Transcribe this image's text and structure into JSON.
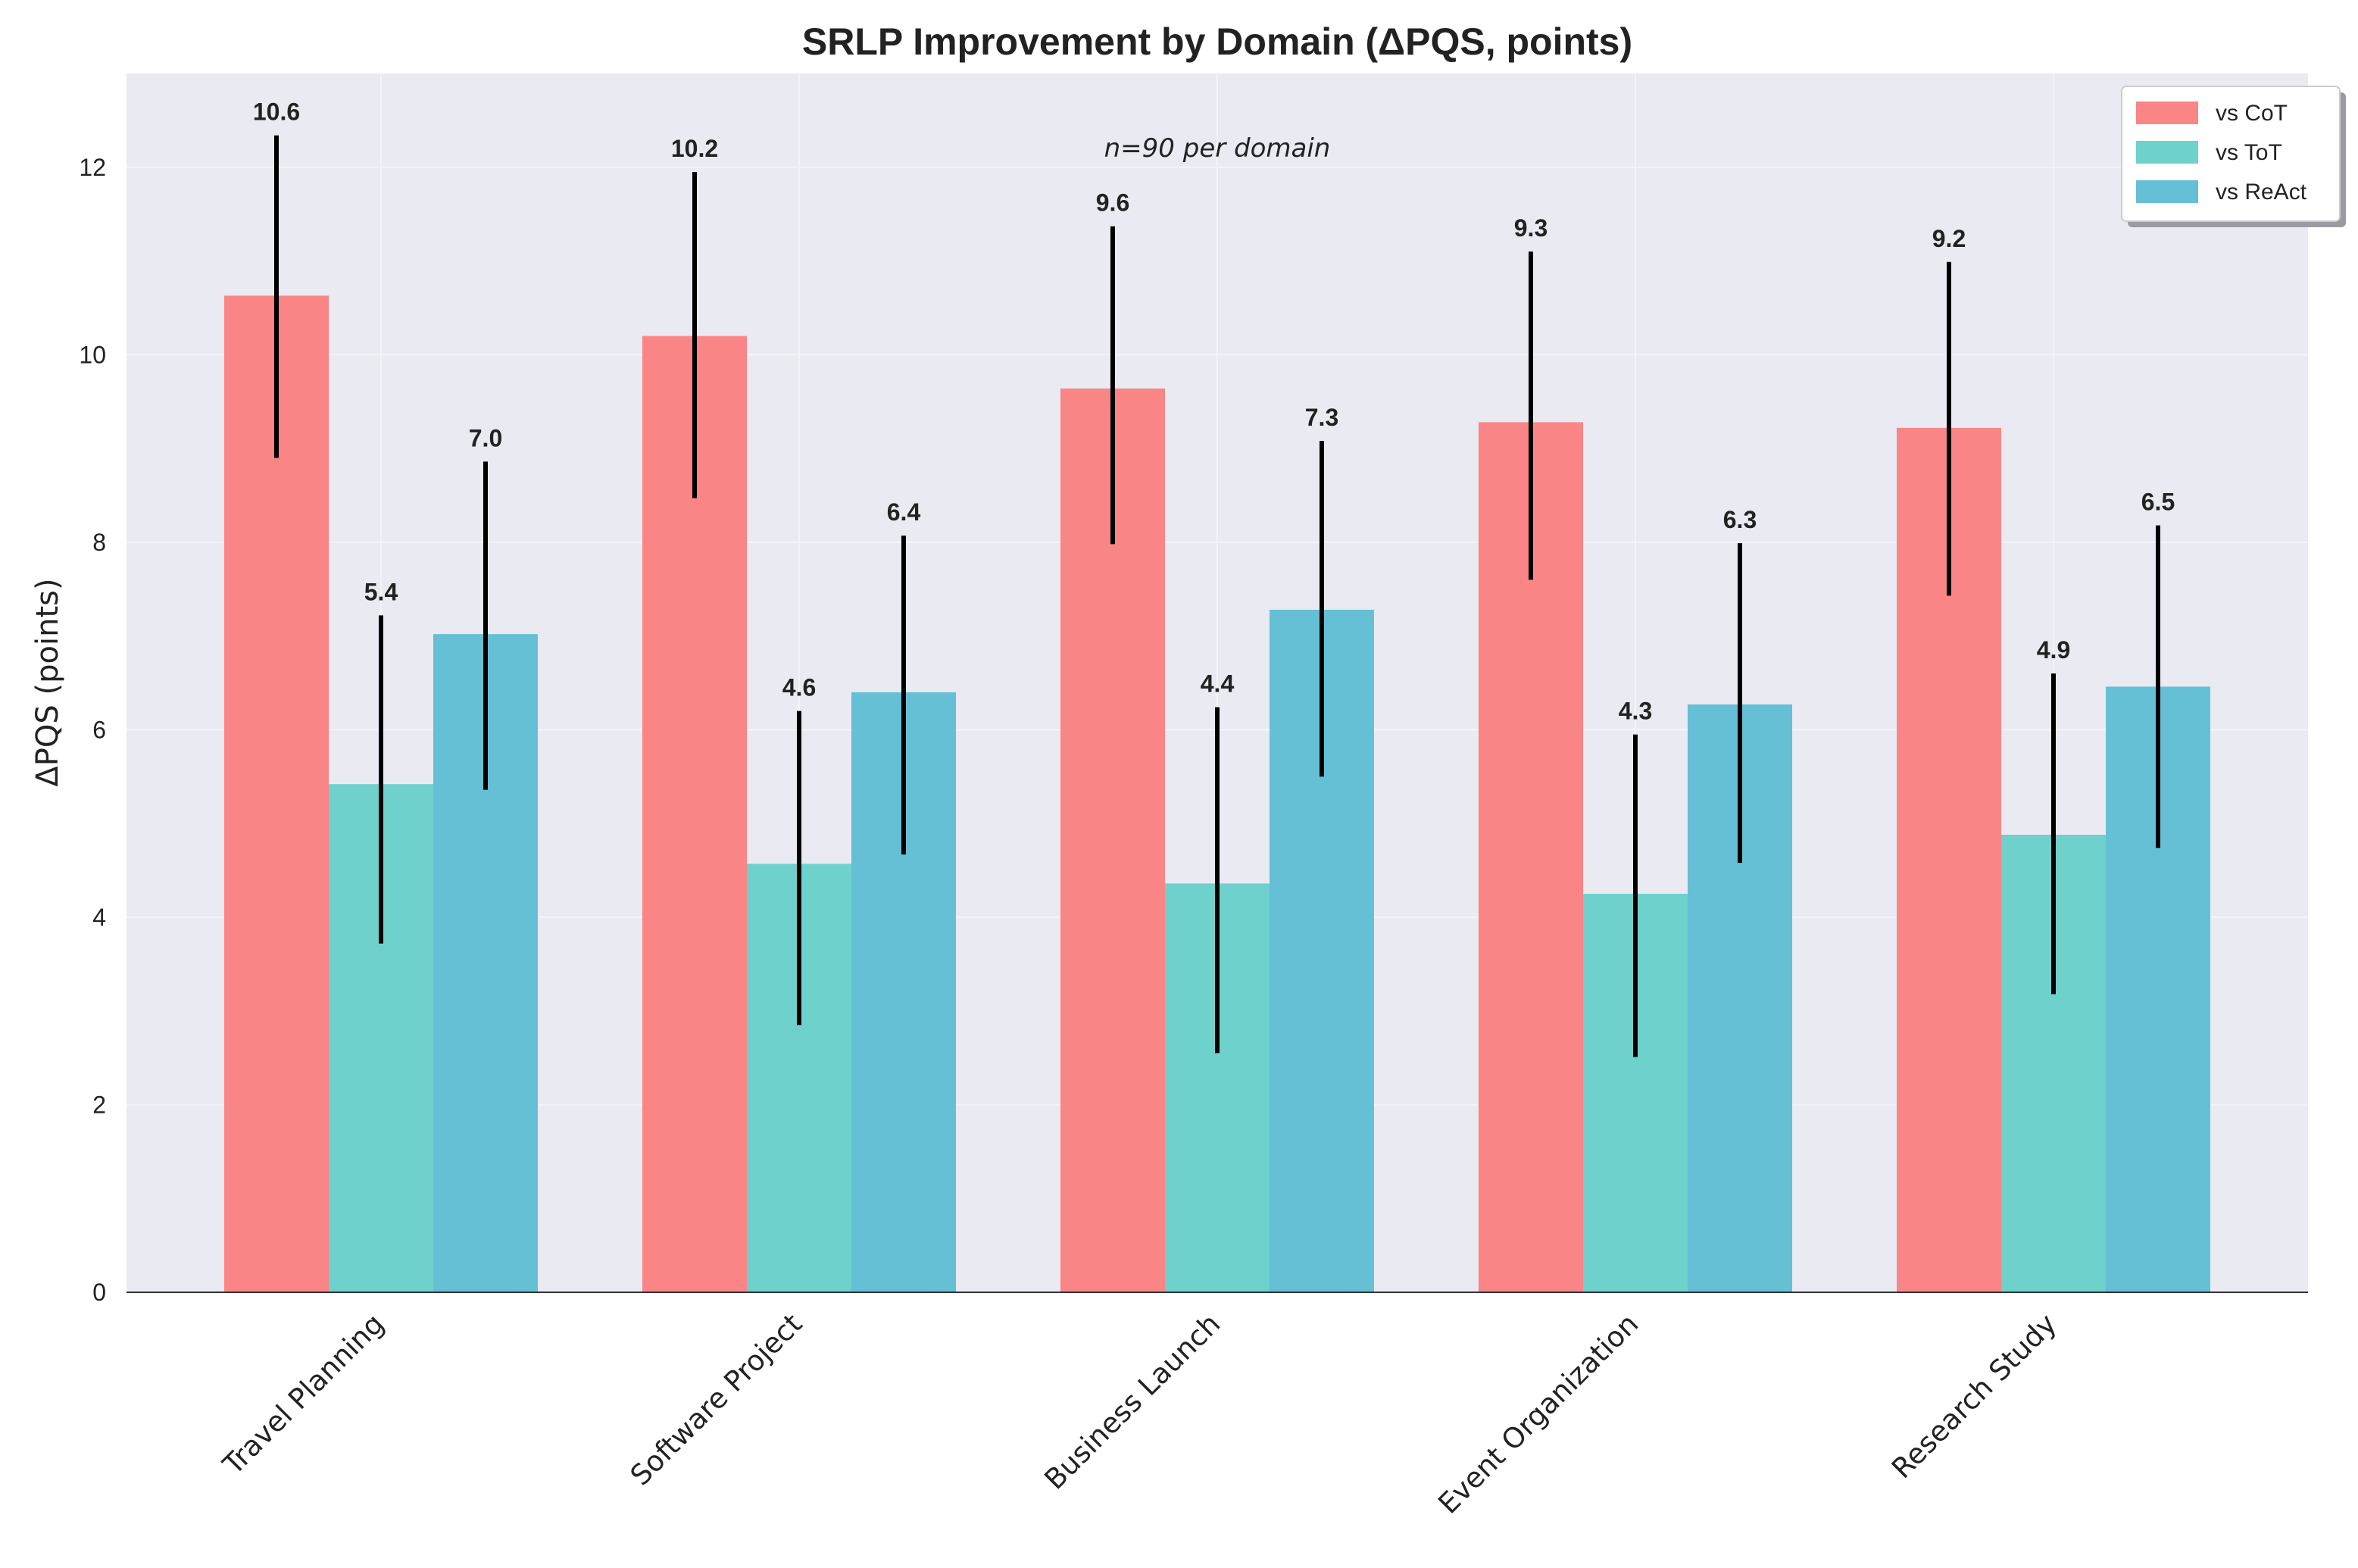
{
  "chart_data": {
    "type": "bar",
    "title": "SRLP Improvement by Domain (ΔPQS, points)",
    "xlabel": "",
    "ylabel": "ΔPQS (points)",
    "ylim": [
      0,
      13
    ],
    "yticks": [
      0,
      2,
      4,
      6,
      8,
      10,
      12
    ],
    "grid": true,
    "legend_position": "top-right",
    "annotation": "n=90 per domain",
    "categories": [
      "Travel Planning",
      "Software Project",
      "Business Launch",
      "Event Organization",
      "Research Study"
    ],
    "series": [
      {
        "name": "vs CoT",
        "color": "#fa8587",
        "values": [
          10.63,
          10.2,
          9.64,
          9.28,
          9.22
        ],
        "labels": [
          "10.6",
          "10.2",
          "9.6",
          "9.3",
          "9.2"
        ],
        "err_low": [
          8.9,
          8.47,
          7.98,
          7.6,
          7.43
        ],
        "err_high": [
          12.34,
          11.95,
          11.37,
          11.1,
          10.99
        ]
      },
      {
        "name": "vs ToT",
        "color": "#6fd1cb",
        "values": [
          5.42,
          4.57,
          4.36,
          4.25,
          4.88
        ],
        "labels": [
          "5.4",
          "4.6",
          "4.4",
          "4.3",
          "4.9"
        ],
        "err_low": [
          3.72,
          2.85,
          2.55,
          2.51,
          3.18
        ],
        "err_high": [
          7.22,
          6.2,
          6.24,
          5.95,
          6.6
        ]
      },
      {
        "name": "vs ReAct",
        "color": "#65c0d5",
        "values": [
          7.02,
          6.4,
          7.28,
          6.27,
          6.46
        ],
        "labels": [
          "7.0",
          "6.4",
          "7.3",
          "6.3",
          "6.5"
        ],
        "err_low": [
          5.36,
          4.67,
          5.5,
          4.58,
          4.74
        ],
        "err_high": [
          8.86,
          8.07,
          9.08,
          7.99,
          8.18
        ]
      }
    ]
  }
}
